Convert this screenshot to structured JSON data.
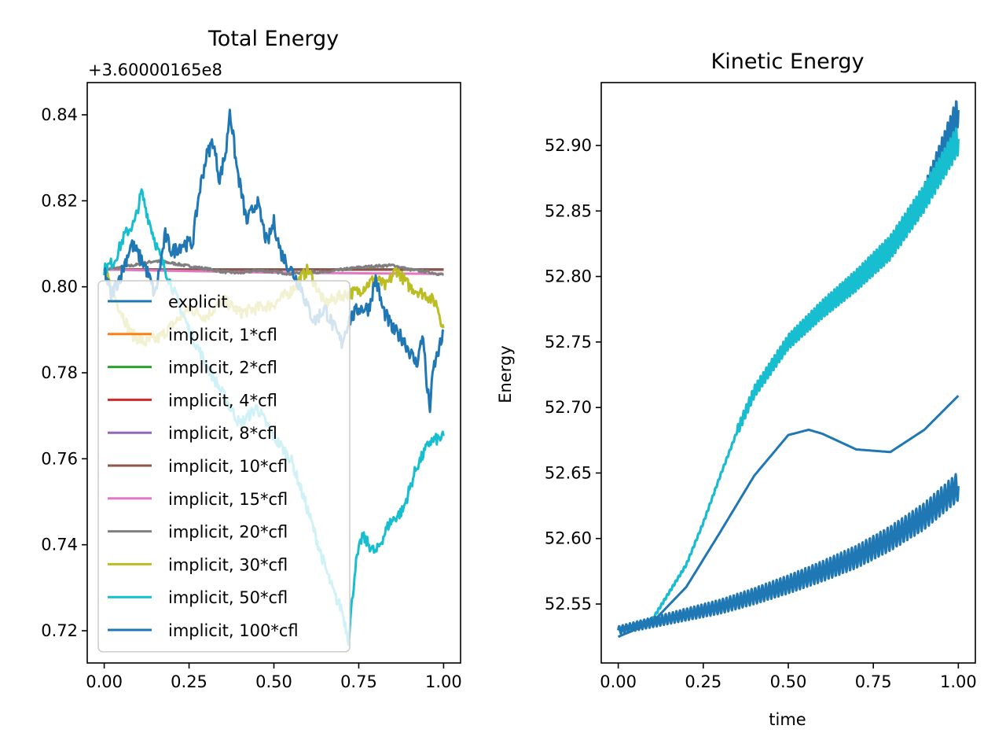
{
  "chart_data": [
    {
      "type": "line",
      "title": "Total Energy",
      "offset_text": "+3.60000165e8",
      "xlabel": "",
      "ylabel": "",
      "xlim": [
        -0.05,
        1.05
      ],
      "ylim": [
        0.7125,
        0.8475
      ],
      "xticks": [
        0.0,
        0.25,
        0.5,
        0.75,
        1.0
      ],
      "xtick_labels": [
        "0.00",
        "0.25",
        "0.50",
        "0.75",
        "1.00"
      ],
      "yticks": [
        0.72,
        0.74,
        0.76,
        0.78,
        0.8,
        0.82,
        0.84
      ],
      "ytick_labels": [
        "0.72",
        "0.74",
        "0.76",
        "0.78",
        "0.80",
        "0.82",
        "0.84"
      ],
      "grid": false,
      "legend_position": "lower-left",
      "series": [
        {
          "name": "explicit",
          "color": "#1f77b4",
          "x": [
            0.0,
            1.0
          ],
          "y": [
            0.804,
            0.804
          ]
        },
        {
          "name": "implicit, 1*cfl",
          "color": "#ff7f0e",
          "x": [
            0.0,
            1.0
          ],
          "y": [
            0.804,
            0.804
          ]
        },
        {
          "name": "implicit, 2*cfl",
          "color": "#2ca02c",
          "x": [
            0.0,
            1.0
          ],
          "y": [
            0.804,
            0.804
          ]
        },
        {
          "name": "implicit, 4*cfl",
          "color": "#d62728",
          "x": [
            0.0,
            1.0
          ],
          "y": [
            0.804,
            0.804
          ]
        },
        {
          "name": "implicit, 8*cfl",
          "color": "#9467bd",
          "x": [
            0.0,
            1.0
          ],
          "y": [
            0.804,
            0.804
          ]
        },
        {
          "name": "implicit, 10*cfl",
          "color": "#8c564b",
          "x": [
            0.0,
            1.0
          ],
          "y": [
            0.804,
            0.804
          ]
        },
        {
          "name": "implicit, 15*cfl",
          "color": "#e377c2",
          "x": [
            0.0,
            0.2,
            0.4,
            0.6,
            0.8,
            1.0
          ],
          "y": [
            0.804,
            0.8037,
            0.8034,
            0.8032,
            0.8031,
            0.803
          ]
        },
        {
          "name": "implicit, 20*cfl",
          "color": "#7f7f7f",
          "x": [
            0.0,
            0.05,
            0.1,
            0.15,
            0.2,
            0.25,
            0.3,
            0.35,
            0.4,
            0.45,
            0.5,
            0.55,
            0.6,
            0.65,
            0.7,
            0.75,
            0.8,
            0.85,
            0.9,
            0.95,
            1.0
          ],
          "y": [
            0.804,
            0.8045,
            0.8052,
            0.806,
            0.8055,
            0.8048,
            0.8042,
            0.8035,
            0.8032,
            0.8038,
            0.8035,
            0.803,
            0.8036,
            0.8033,
            0.804,
            0.8045,
            0.8048,
            0.805,
            0.804,
            0.8035,
            0.8028
          ]
        },
        {
          "name": "implicit, 30*cfl",
          "color": "#bcbd22",
          "x": [
            0.0,
            0.04,
            0.08,
            0.12,
            0.16,
            0.2,
            0.25,
            0.3,
            0.35,
            0.4,
            0.45,
            0.5,
            0.55,
            0.6,
            0.65,
            0.7,
            0.75,
            0.8,
            0.83,
            0.86,
            0.9,
            0.95,
            0.98,
            1.0
          ],
          "y": [
            0.804,
            0.796,
            0.789,
            0.787,
            0.788,
            0.791,
            0.795,
            0.793,
            0.797,
            0.794,
            0.795,
            0.796,
            0.799,
            0.804,
            0.796,
            0.798,
            0.799,
            0.802,
            0.8,
            0.804,
            0.8,
            0.798,
            0.796,
            0.79
          ]
        },
        {
          "name": "implicit, 50*cfl",
          "color": "#17becf",
          "x": [
            0.0,
            0.03,
            0.06,
            0.09,
            0.11,
            0.13,
            0.16,
            0.2,
            0.25,
            0.3,
            0.35,
            0.4,
            0.45,
            0.5,
            0.55,
            0.6,
            0.65,
            0.68,
            0.7,
            0.72,
            0.74,
            0.76,
            0.8,
            0.84,
            0.88,
            0.92,
            0.96,
            1.0
          ],
          "y": [
            0.804,
            0.806,
            0.812,
            0.815,
            0.822,
            0.816,
            0.808,
            0.8,
            0.79,
            0.782,
            0.775,
            0.768,
            0.772,
            0.765,
            0.76,
            0.748,
            0.735,
            0.728,
            0.725,
            0.718,
            0.735,
            0.742,
            0.738,
            0.745,
            0.748,
            0.758,
            0.764,
            0.765
          ]
        },
        {
          "name": "implicit, 100*cfl",
          "color": "#1f77b4",
          "x": [
            0.0,
            0.02,
            0.05,
            0.08,
            0.12,
            0.15,
            0.18,
            0.2,
            0.23,
            0.26,
            0.28,
            0.3,
            0.32,
            0.34,
            0.36,
            0.37,
            0.39,
            0.42,
            0.45,
            0.48,
            0.5,
            0.52,
            0.55,
            0.58,
            0.6,
            0.62,
            0.65,
            0.68,
            0.7,
            0.72,
            0.75,
            0.78,
            0.8,
            0.82,
            0.85,
            0.88,
            0.9,
            0.92,
            0.94,
            0.95,
            0.96,
            0.97,
            1.0
          ],
          "y": [
            0.804,
            0.798,
            0.803,
            0.81,
            0.805,
            0.798,
            0.812,
            0.808,
            0.81,
            0.81,
            0.822,
            0.83,
            0.834,
            0.825,
            0.832,
            0.8415,
            0.828,
            0.815,
            0.82,
            0.81,
            0.815,
            0.808,
            0.804,
            0.8,
            0.795,
            0.792,
            0.795,
            0.79,
            0.787,
            0.792,
            0.795,
            0.795,
            0.802,
            0.795,
            0.79,
            0.788,
            0.785,
            0.782,
            0.789,
            0.777,
            0.772,
            0.781,
            0.789
          ]
        }
      ]
    },
    {
      "type": "line",
      "title": "Kinetic Energy",
      "xlabel": "time",
      "ylabel": "Energy",
      "xlim": [
        -0.05,
        1.05
      ],
      "ylim": [
        52.505,
        52.948
      ],
      "xticks": [
        0.0,
        0.25,
        0.5,
        0.75,
        1.0
      ],
      "xtick_labels": [
        "0.00",
        "0.25",
        "0.50",
        "0.75",
        "1.00"
      ],
      "yticks": [
        52.55,
        52.6,
        52.65,
        52.7,
        52.75,
        52.8,
        52.85,
        52.9
      ],
      "ytick_labels": [
        "52.55",
        "52.60",
        "52.65",
        "52.70",
        "52.75",
        "52.80",
        "52.85",
        "52.90"
      ],
      "grid": false,
      "series": [
        {
          "name": "explicit",
          "color": "#1f77b4",
          "x": [
            0.0,
            0.1,
            0.2,
            0.25,
            0.3,
            0.35,
            0.4,
            0.5,
            0.6,
            0.7,
            0.8,
            0.9,
            1.0
          ],
          "y": [
            52.53,
            52.538,
            52.58,
            52.612,
            52.648,
            52.682,
            52.712,
            52.75,
            52.775,
            52.797,
            52.822,
            52.86,
            52.927
          ]
        },
        {
          "name": "implicit, 50*cfl",
          "color": "#17becf",
          "x": [
            0.0,
            0.1,
            0.2,
            0.25,
            0.3,
            0.35,
            0.4,
            0.5,
            0.6,
            0.7,
            0.8,
            0.9,
            1.0
          ],
          "y": [
            52.53,
            52.538,
            52.58,
            52.612,
            52.648,
            52.682,
            52.712,
            52.75,
            52.775,
            52.797,
            52.822,
            52.86,
            52.905
          ]
        },
        {
          "name": "implicit, 100*cfl",
          "color": "#1f77b4",
          "x": [
            0.0,
            0.1,
            0.2,
            0.3,
            0.4,
            0.5,
            0.56,
            0.6,
            0.7,
            0.8,
            0.9,
            1.0
          ],
          "y": [
            52.525,
            52.536,
            52.563,
            52.605,
            52.648,
            52.679,
            52.683,
            52.68,
            52.668,
            52.666,
            52.683,
            52.709
          ]
        },
        {
          "name": "",
          "color": "#1f77b4",
          "x": [
            0.0,
            0.1,
            0.2,
            0.3,
            0.4,
            0.5,
            0.6,
            0.7,
            0.8,
            0.9,
            1.0
          ],
          "y": [
            52.53,
            52.536,
            52.542,
            52.548,
            52.556,
            52.565,
            52.575,
            52.586,
            52.6,
            52.617,
            52.64
          ]
        }
      ]
    }
  ]
}
